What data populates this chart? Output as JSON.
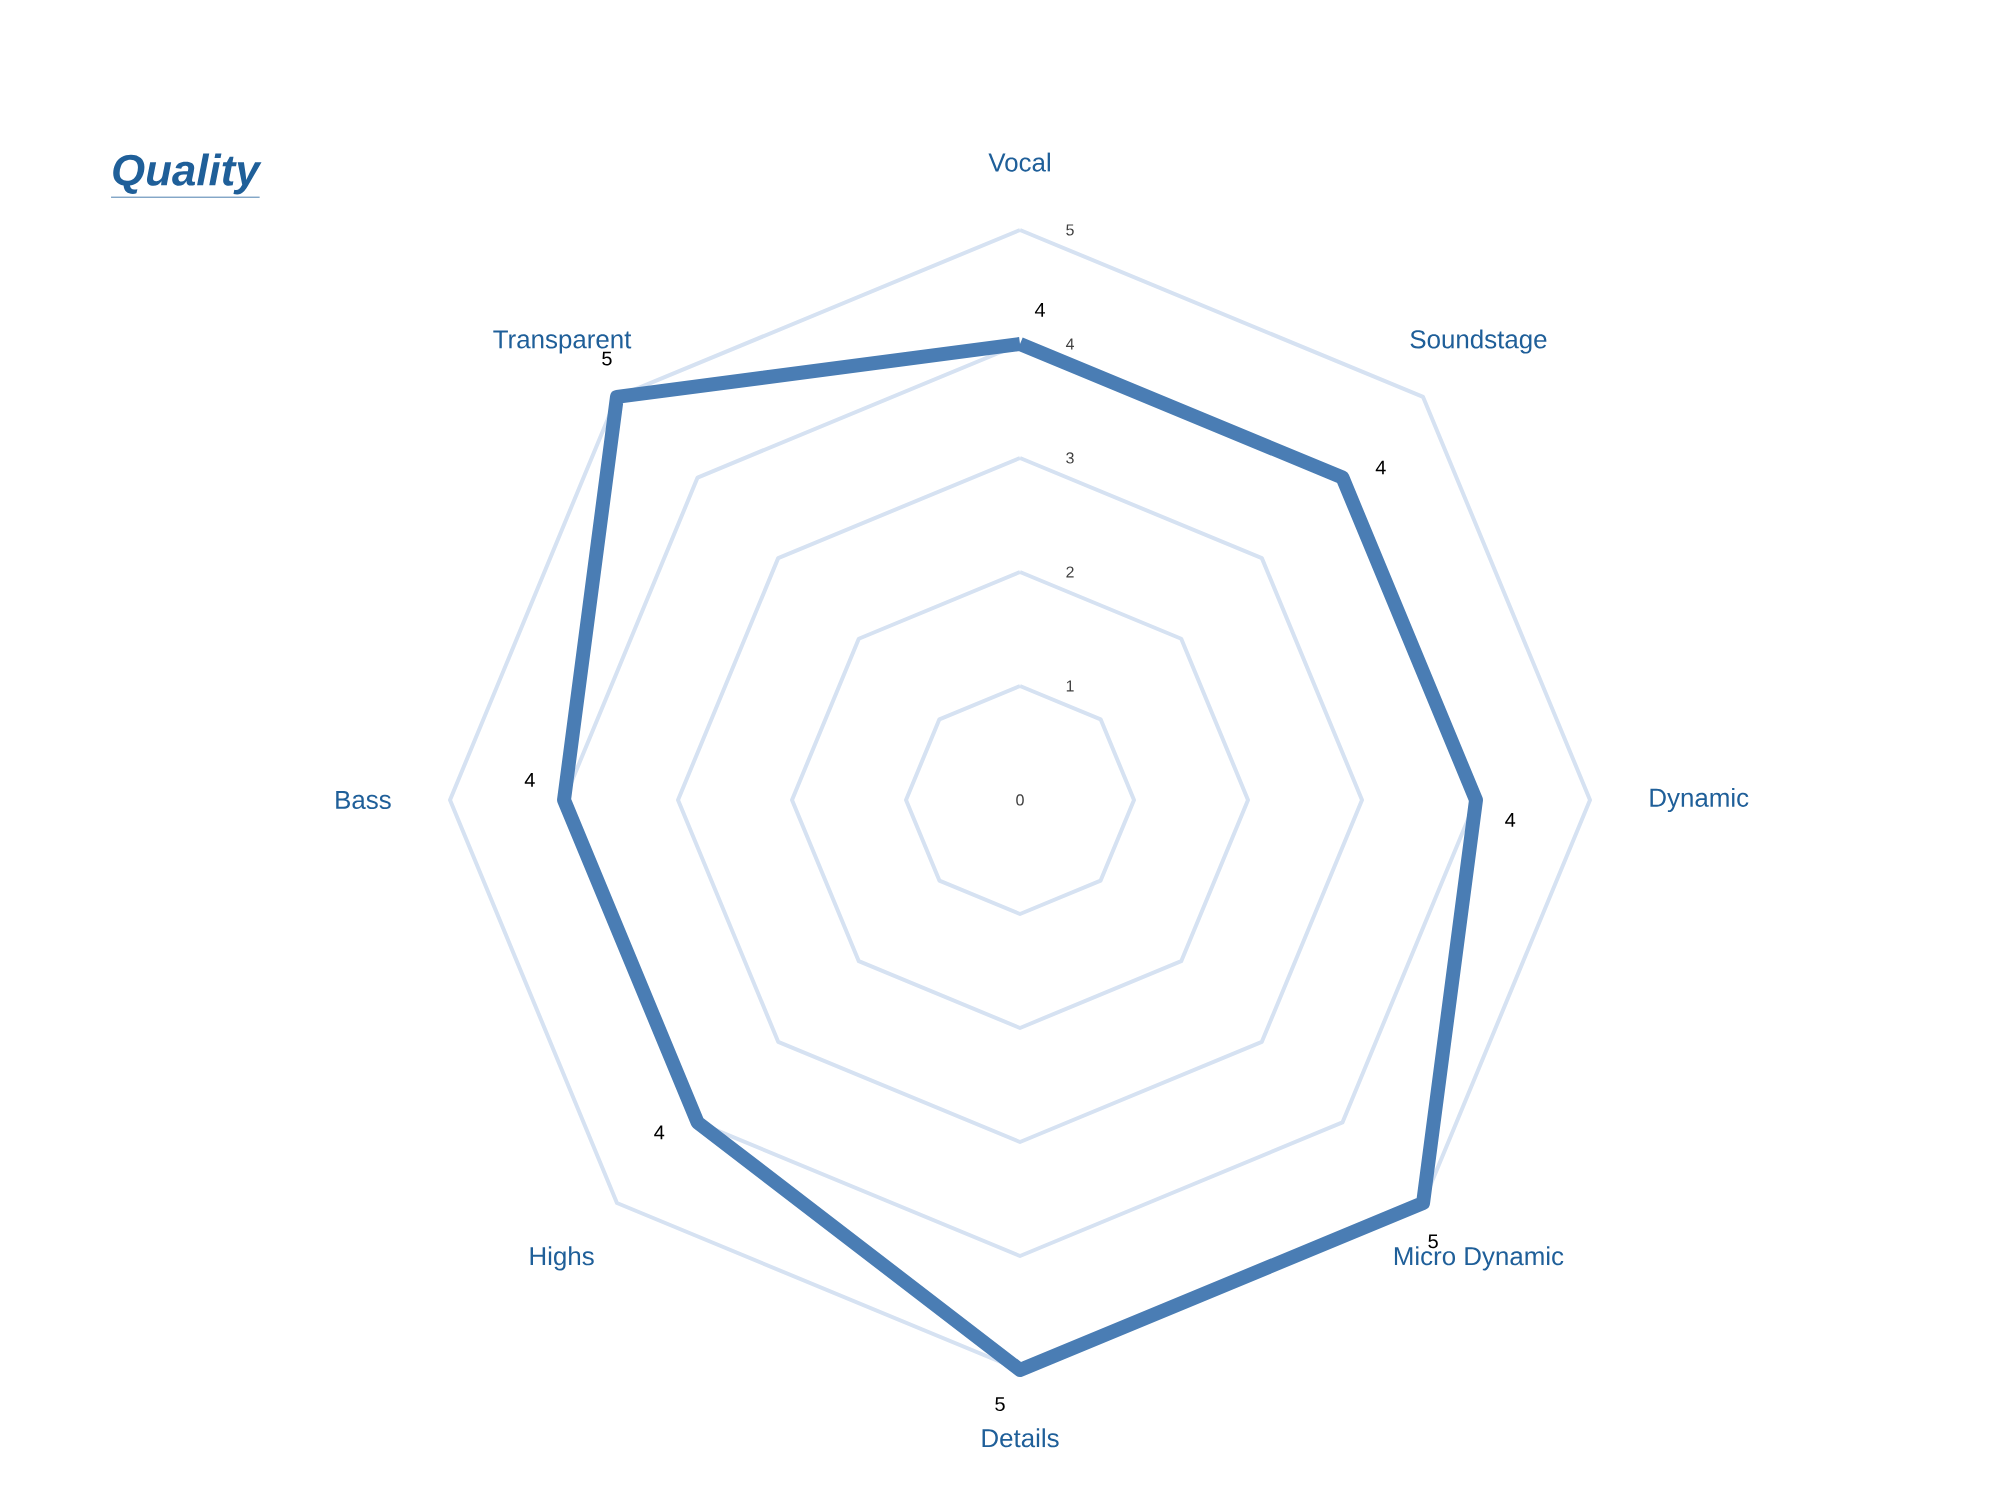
{
  "chart_data": {
    "type": "radar",
    "title": "Quality",
    "categories": [
      "Vocal",
      "Soundstage",
      "Dynamic",
      "Micro Dynamic",
      "Details",
      "Highs",
      "Bass",
      "Transparent"
    ],
    "series": [
      {
        "color": "#4a7db4",
        "values": [
          4,
          4,
          4,
          5,
          5,
          4,
          4,
          5
        ]
      }
    ],
    "ylim": [
      0,
      5
    ],
    "yticks": [
      0,
      1,
      2,
      3,
      4,
      5
    ],
    "grid": true,
    "data_labels": true,
    "marker": "none"
  }
}
